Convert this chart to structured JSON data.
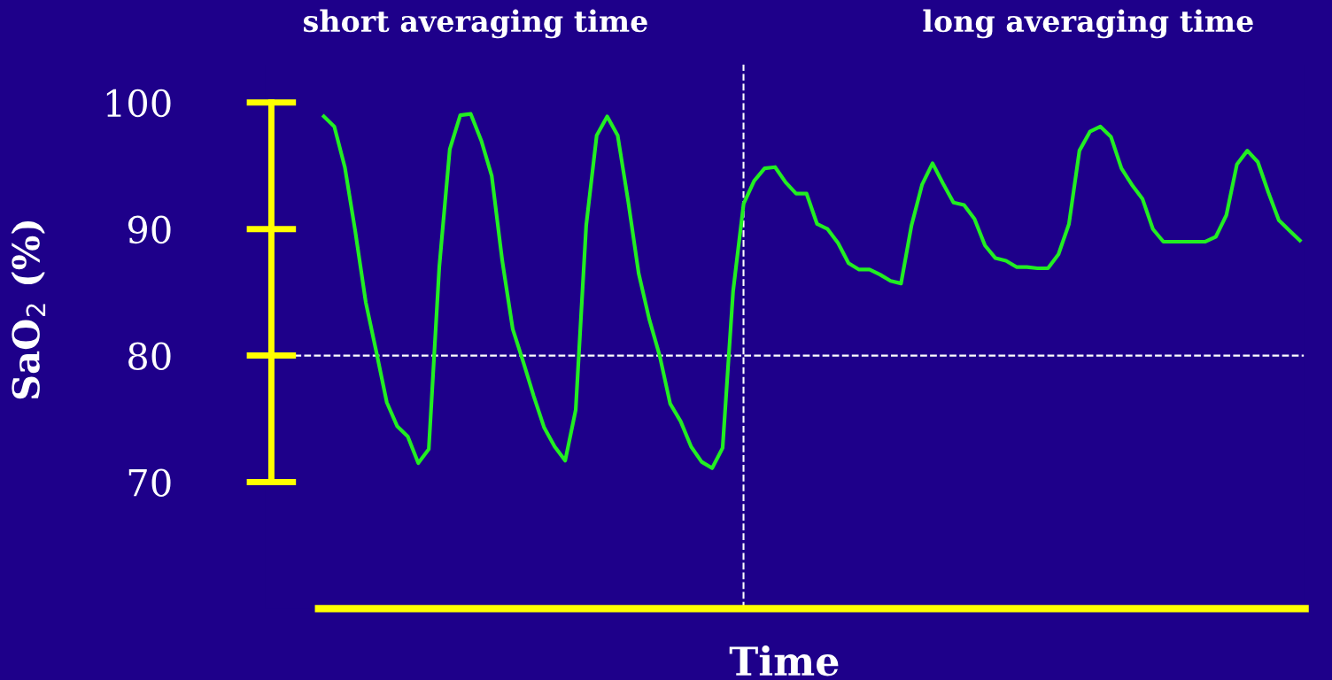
{
  "chart_data": {
    "type": "line",
    "ylabel": "SaO$_{2}$ (%)",
    "xlabel": "Time",
    "annotations": [
      "short averaging time",
      "long averaging time"
    ],
    "categories": [
      null,
      null,
      null,
      null,
      null,
      null,
      null,
      null,
      null,
      null,
      null,
      null,
      null,
      null,
      null,
      null,
      null,
      null,
      null,
      null,
      null,
      null,
      null,
      null,
      null,
      null,
      null,
      null,
      null,
      null,
      null,
      null,
      null,
      null,
      null,
      null,
      null,
      null,
      null,
      null,
      null,
      null,
      null,
      null,
      null,
      null,
      null,
      null,
      null,
      null,
      null,
      null,
      null,
      null,
      null,
      null,
      null,
      null,
      null,
      null,
      null,
      null,
      null,
      null,
      null,
      null,
      null,
      null,
      null,
      null,
      null,
      null,
      null,
      null,
      null,
      null,
      null,
      null,
      null,
      null,
      null,
      null,
      null,
      null,
      null,
      null,
      null,
      null,
      null,
      null,
      null,
      null,
      null,
      null
    ],
    "series": [
      {
        "color": "#22ee22",
        "values": [
          98.9,
          98.1,
          94.9,
          89.8,
          84.2,
          80.3,
          76.3,
          74.4,
          73.6,
          71.5,
          72.6,
          87.0,
          96.3,
          99.0,
          99.1,
          97.0,
          94.2,
          87.5,
          82.1,
          79.5,
          76.8,
          74.3,
          72.8,
          71.7,
          75.7,
          90.3,
          97.4,
          98.9,
          97.4,
          92.2,
          86.5,
          82.9,
          80.0,
          76.2,
          74.8,
          72.8,
          71.6,
          71.1,
          72.7,
          85.1,
          92.0,
          93.8,
          94.8,
          94.9,
          93.7,
          92.8,
          92.8,
          90.4,
          90.0,
          88.9,
          87.3,
          86.8,
          86.8,
          86.4,
          85.9,
          85.7,
          90.3,
          93.5,
          95.2,
          93.6,
          92.1,
          91.9,
          90.8,
          88.7,
          87.7,
          87.5,
          87.0,
          87.0,
          86.9,
          86.9,
          88.0,
          90.4,
          96.2,
          97.7,
          98.1,
          97.3,
          94.8,
          93.5,
          92.4,
          90.0,
          89.0,
          89.0,
          89.0,
          89.0,
          89.0,
          89.4,
          91.1,
          95.1,
          96.2,
          95.3,
          92.9,
          90.7,
          89.9,
          89.1
        ]
      }
    ],
    "ylim": [
      60,
      103
    ],
    "yticks": [
      70,
      80,
      90,
      100
    ],
    "tick_labels": "y",
    "grid": false,
    "legend": false,
    "marker": "none",
    "line_style": "solid",
    "ref_lines": [
      {
        "axis": "y",
        "value": 80,
        "color": "#ffffff",
        "line_style": "dashed"
      }
    ]
  }
}
